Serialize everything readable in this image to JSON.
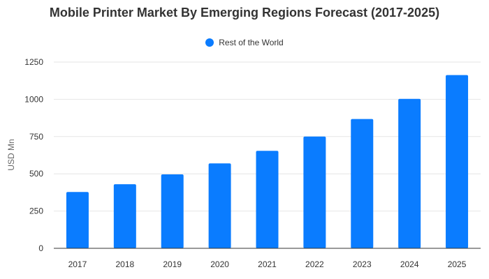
{
  "chart_data": {
    "type": "bar",
    "title": "Mobile Printer Market By Emerging Regions Forecast (2017-2025)",
    "xlabel": "",
    "ylabel": "USD Mn",
    "categories": [
      "2017",
      "2018",
      "2019",
      "2020",
      "2021",
      "2022",
      "2023",
      "2024",
      "2025"
    ],
    "series": [
      {
        "name": "Rest of the World",
        "color": "#0a7cff",
        "values": [
          378,
          430,
          496,
          570,
          654,
          750,
          868,
          1003,
          1163
        ]
      }
    ],
    "ylim": [
      0,
      1250
    ],
    "yticks": [
      0,
      250,
      500,
      750,
      1000,
      1250
    ],
    "grid": true,
    "legend_position": "top-center"
  }
}
